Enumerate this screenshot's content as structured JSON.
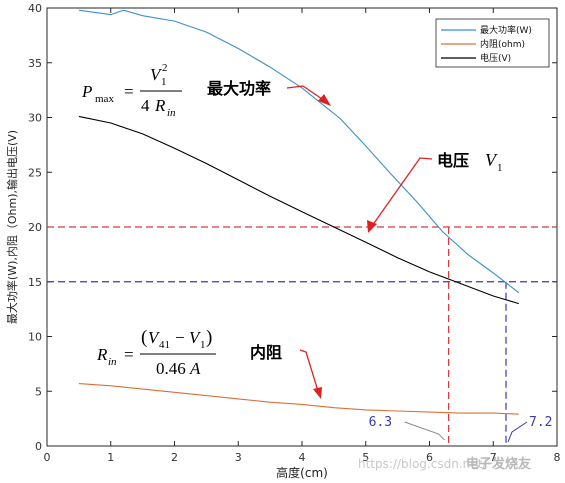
{
  "chart_data": {
    "type": "line",
    "xlabel": "高度(cm)",
    "ylabel": "最大功率(W),内阻（Ohm),输出电压(V)",
    "xlim": [
      0,
      8
    ],
    "ylim": [
      0,
      40
    ],
    "xticks": [
      "0",
      "1",
      "2",
      "3",
      "4",
      "5",
      "6",
      "7",
      "8"
    ],
    "yticks": [
      "0",
      "5",
      "10",
      "15",
      "20",
      "25",
      "30",
      "35",
      "40"
    ],
    "legend_position": "top-right",
    "grid": false,
    "series": [
      {
        "name": "最大功率(W)",
        "color": "#3b8fd0",
        "x": [
          0.5,
          0.75,
          1.0,
          1.2,
          1.5,
          2.0,
          2.5,
          3.0,
          3.5,
          4.0,
          4.3,
          4.6,
          5.0,
          5.4,
          5.8,
          6.2,
          6.6,
          7.0,
          7.2,
          7.4
        ],
        "y": [
          39.8,
          39.6,
          39.4,
          39.8,
          39.3,
          38.8,
          37.8,
          36.3,
          34.6,
          32.7,
          31.3,
          29.9,
          27.4,
          24.8,
          22.3,
          19.6,
          17.5,
          15.8,
          14.9,
          14.0
        ]
      },
      {
        "name": "内阻(ohm)",
        "color": "#d9703a",
        "x": [
          0.5,
          1.0,
          1.5,
          2.0,
          2.5,
          3.0,
          3.5,
          4.0,
          4.5,
          5.0,
          5.5,
          6.0,
          6.5,
          7.0,
          7.4
        ],
        "y": [
          5.7,
          5.5,
          5.2,
          4.9,
          4.6,
          4.3,
          4.0,
          3.8,
          3.5,
          3.3,
          3.2,
          3.1,
          3.0,
          3.0,
          2.9
        ]
      },
      {
        "name": "电压(V)",
        "color": "#000000",
        "x": [
          0.5,
          1.0,
          1.5,
          2.0,
          2.5,
          3.0,
          3.5,
          4.0,
          4.5,
          5.0,
          5.5,
          6.0,
          6.5,
          7.0,
          7.4
        ],
        "y": [
          30.1,
          29.5,
          28.5,
          27.2,
          25.8,
          24.3,
          22.8,
          21.4,
          20.0,
          18.6,
          17.2,
          15.9,
          14.8,
          13.7,
          13.0
        ]
      }
    ],
    "reference_lines": {
      "horizontal": [
        {
          "y": 20,
          "color": "#d63a3a"
        },
        {
          "y": 15,
          "color": "#3a3ab0"
        }
      ],
      "vertical": [
        {
          "x": 6.3,
          "color": "#d63a3a",
          "label": "6.3"
        },
        {
          "x": 7.2,
          "color": "#3a3ab0",
          "label": "7.2"
        }
      ]
    },
    "annotations": {
      "max_power": "最大功率",
      "voltage": "电压",
      "resistance": "内阻",
      "formula_pmax": {
        "lhs": "P",
        "lhs_sub": "max",
        "num": "V",
        "num_sub": "1",
        "num_sup": "2",
        "den": "4",
        "den_var": "R",
        "den_sub": "in"
      },
      "formula_rin": {
        "lhs": "R",
        "lhs_sub": "in",
        "num_a": "V",
        "num_a_sub": "41",
        "num_b": "V",
        "num_b_sub": "1",
        "den": "0.46",
        "den_var": "A"
      },
      "voltage_symbol": "V",
      "voltage_symbol_sub": "1"
    },
    "watermark": "https://blog.csdn.net/",
    "watermark_brand": "电子发烧友"
  }
}
